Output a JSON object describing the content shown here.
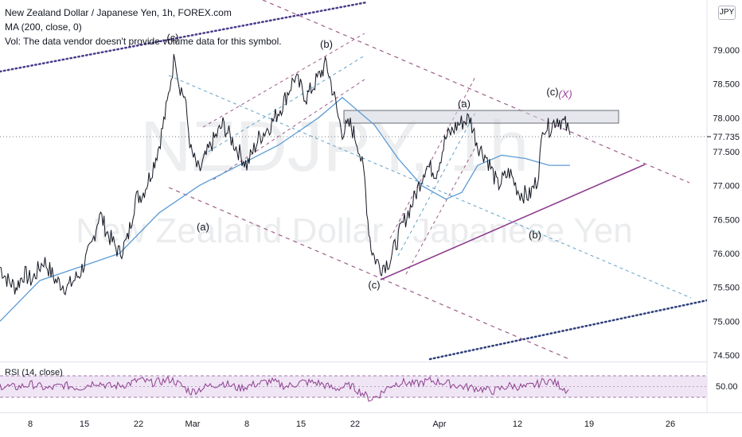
{
  "header": {
    "title": "New Zealand Dollar / Japanese Yen, 1h, FOREX.com",
    "ma_legend": "MA (200, close, 0)",
    "vol_legend": "Vol: The data vendor doesn't provide volume data for this symbol.",
    "currency_badge": "JPY"
  },
  "watermark": {
    "symbol": "NZDJPY, 1h",
    "name": "New Zealand Dollar / Japanese Yen"
  },
  "rsi": {
    "legend": "RSI (14, close)",
    "level_label": "50.00",
    "upper": 70,
    "lower": 30
  },
  "colors": {
    "price": "#131722",
    "ma": "#5b9bd5",
    "purple_line": "#8e3f8e",
    "dashed_purple": "#9c5c88",
    "dashed_blue": "#5fa3c8",
    "rsi_line": "#8e3f8e",
    "rsi_band": "#eadcf2",
    "axis_text": "#131722"
  },
  "annotations": {
    "a1": "(a)",
    "c_top": "(c)",
    "b1": "(b)",
    "c_bottom": "(c)",
    "a2": "(a)",
    "c2": "(c)",
    "x2": "(X)",
    "b2": "(b)"
  },
  "chart_data": {
    "type": "line",
    "symbol": "NZDJPY",
    "interval": "1h",
    "y_ticks": [
      79.0,
      78.5,
      78.0,
      77.5,
      77.0,
      76.5,
      76.0,
      75.5,
      75.0,
      74.5
    ],
    "y_tick_labels": [
      "79.000",
      "78.500",
      "78.000",
      "77.500",
      "77.000",
      "76.500",
      "76.000",
      "75.500",
      "75.000",
      "74.500"
    ],
    "ylim": [
      74.48,
      79.85
    ],
    "last_price": 77.735,
    "last_price_label": "77.735",
    "x_tick_labels": [
      "8",
      "15",
      "22",
      "Mar",
      "8",
      "15",
      "22",
      "Apr",
      "12",
      "19",
      "26"
    ],
    "price_series": {
      "name": "NZDJPY",
      "x": [
        0,
        10,
        20,
        30,
        40,
        55,
        70,
        85,
        100,
        115,
        125,
        135,
        150,
        160,
        170,
        180,
        190,
        200,
        210,
        215,
        220,
        225,
        232,
        240,
        250,
        265,
        280,
        295,
        310,
        325,
        340,
        355,
        370,
        385,
        400,
        410,
        420,
        425,
        430,
        440,
        450,
        458,
        462,
        466,
        470,
        478,
        490,
        505,
        520,
        535,
        548,
        560,
        575,
        590,
        600,
        612,
        625,
        640,
        652,
        665,
        675,
        683,
        690,
        700,
        710,
        716
      ],
      "values": [
        75.8,
        75.6,
        75.5,
        75.7,
        75.6,
        75.9,
        75.6,
        75.5,
        75.7,
        76.1,
        76.6,
        76.3,
        76.0,
        76.2,
        76.8,
        76.9,
        77.2,
        77.6,
        78.2,
        78.6,
        78.95,
        78.5,
        78.3,
        77.5,
        77.2,
        77.6,
        77.9,
        77.6,
        77.3,
        77.7,
        77.9,
        78.2,
        78.6,
        78.3,
        78.6,
        78.8,
        78.3,
        78.0,
        77.8,
        77.9,
        77.6,
        77.1,
        76.5,
        76.1,
        75.95,
        75.8,
        75.9,
        76.4,
        76.8,
        77.3,
        77.2,
        77.7,
        77.9,
        78.0,
        77.6,
        77.4,
        77.0,
        77.2,
        76.9,
        76.85,
        77.1,
        77.9,
        77.85,
        78.0,
        77.9,
        77.75
      ]
    },
    "ma_series": {
      "name": "MA (200, close, 0)",
      "x": [
        0,
        50,
        100,
        150,
        200,
        250,
        300,
        350,
        400,
        430,
        470,
        500,
        530,
        560,
        580,
        600,
        630,
        660,
        690,
        716
      ],
      "values": [
        75.0,
        75.6,
        75.8,
        76.0,
        76.6,
        77.0,
        77.3,
        77.6,
        78.0,
        78.3,
        77.9,
        77.4,
        77.0,
        76.8,
        76.9,
        77.3,
        77.45,
        77.4,
        77.3,
        77.3
      ]
    },
    "rsi_series": {
      "name": "RSI (14, close)",
      "x": [
        0,
        20,
        40,
        60,
        80,
        100,
        120,
        140,
        160,
        175,
        190,
        205,
        215,
        225,
        240,
        260,
        280,
        300,
        320,
        340,
        360,
        380,
        400,
        420,
        440,
        455,
        465,
        475,
        490,
        505,
        520,
        540,
        560,
        580,
        600,
        620,
        640,
        660,
        675,
        685,
        695,
        705,
        716
      ],
      "values": [
        52,
        48,
        55,
        45,
        53,
        47,
        60,
        50,
        55,
        65,
        58,
        62,
        66,
        55,
        38,
        50,
        58,
        46,
        55,
        62,
        50,
        60,
        58,
        45,
        52,
        36,
        22,
        30,
        52,
        60,
        55,
        63,
        58,
        50,
        46,
        40,
        52,
        48,
        55,
        64,
        60,
        50,
        38
      ]
    }
  }
}
